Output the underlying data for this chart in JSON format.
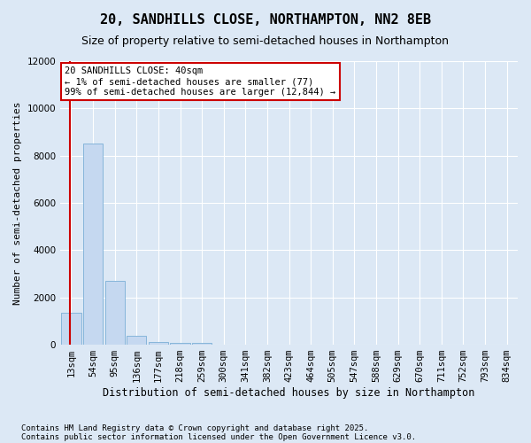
{
  "title1": "20, SANDHILLS CLOSE, NORTHAMPTON, NN2 8EB",
  "title2": "Size of property relative to semi-detached houses in Northampton",
  "xlabel": "Distribution of semi-detached houses by size in Northampton",
  "ylabel": "Number of semi-detached properties",
  "categories": [
    "13sqm",
    "54sqm",
    "95sqm",
    "136sqm",
    "177sqm",
    "218sqm",
    "259sqm",
    "300sqm",
    "341sqm",
    "382sqm",
    "423sqm",
    "464sqm",
    "505sqm",
    "547sqm",
    "588sqm",
    "629sqm",
    "670sqm",
    "711sqm",
    "752sqm",
    "793sqm",
    "834sqm"
  ],
  "values": [
    1350,
    8500,
    2700,
    380,
    100,
    80,
    70,
    0,
    0,
    0,
    0,
    0,
    0,
    0,
    0,
    0,
    0,
    0,
    0,
    0,
    0
  ],
  "bar_color": "#c5d8f0",
  "bar_edge_color": "#7aaed6",
  "annotation_text": "20 SANDHILLS CLOSE: 40sqm\n← 1% of semi-detached houses are smaller (77)\n99% of semi-detached houses are larger (12,844) →",
  "annotation_box_color": "#ffffff",
  "annotation_box_edge": "#cc0000",
  "vline_color": "#cc0000",
  "ylim": [
    0,
    12000
  ],
  "yticks": [
    0,
    2000,
    4000,
    6000,
    8000,
    10000,
    12000
  ],
  "footer1": "Contains HM Land Registry data © Crown copyright and database right 2025.",
  "footer2": "Contains public sector information licensed under the Open Government Licence v3.0.",
  "bg_color": "#dce8f5",
  "plot_bg_color": "#dce8f5",
  "title1_fontsize": 11,
  "title2_fontsize": 9,
  "xlabel_fontsize": 8.5,
  "ylabel_fontsize": 8,
  "tick_fontsize": 7.5,
  "footer_fontsize": 6.5
}
